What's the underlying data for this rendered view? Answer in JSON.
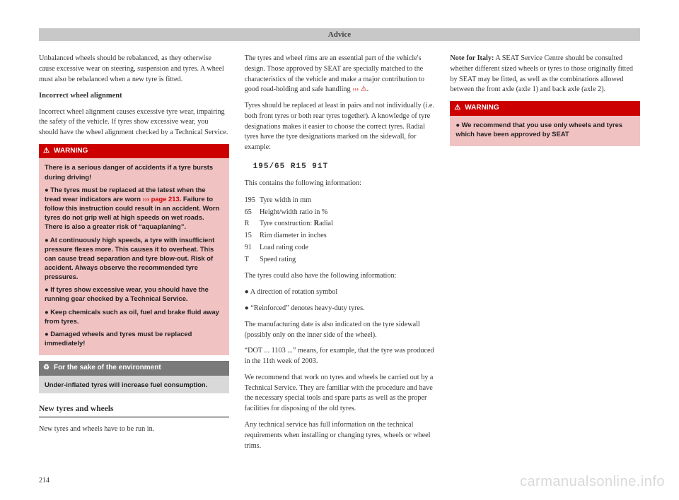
{
  "pageNumber": "214",
  "watermark": "carmanualsonline.info",
  "headerBar": "Advice",
  "col1": {
    "p1": "Unbalanced wheels should be rebalanced, as they otherwise cause excessive wear on steering, suspension and tyres. A wheel must also be rebalanced when a new tyre is fitted.",
    "h1": "Incorrect wheel alignment",
    "p2": "Incorrect wheel alignment causes excessive tyre wear, impairing the safety of the vehicle. If tyres show excessive wear, you should have the wheel alignment checked by a Technical Service."
  },
  "warning1": {
    "title": "WARNING",
    "b1": "There is a serious danger of accidents if a tyre bursts during driving!",
    "b2a": "● The tyres must be replaced at the latest when the tread wear indicators are worn ",
    "b2link": "››› page 213",
    "b2b": ". Failure to follow this instruction could result in an accident. Worn tyres do not grip well at high speeds on wet roads. There is also a greater risk of “aquaplaning”.",
    "b3": "● At continuously high speeds, a tyre with insufficient pressure flexes more. This causes it to overheat. This can cause tread separation and tyre blow-out. Risk of accident. Always observe the recommended tyre pressures.",
    "b4": "● If tyres show excessive wear, you should have the running gear checked by a Technical Service.",
    "b5": "● Keep chemicals such as oil, fuel and brake fluid away from tyres.",
    "b6": "● Damaged wheels and tyres must be replaced immediately!"
  },
  "envBox": {
    "title": "For the sake of the environment",
    "body": "Under-inflated tyres will increase fuel consumption."
  },
  "section2": {
    "title": "New tyres and wheels",
    "p1": "New tyres and wheels have to be run in.",
    "p2a": "The tyres and wheel rims are an essential part of the vehicle's design. Those approved by SEAT are specially matched to the characteristics of the vehicle and make a major contribution to good road-holding and safe handling ",
    "p2link": "›››",
    "p2b": ".",
    "p3": "Tyres should be replaced at least in pairs and not individually (i.e. both front tyres or both rear tyres together). A knowledge of tyre designations makes it easier to choose the correct tyres. Radial tyres have the tyre designations marked on the sidewall, for example:",
    "code": "195/65  R15  91T",
    "p4": "This contains the following information:",
    "defs": [
      [
        "195",
        "Tyre width in mm"
      ],
      [
        "65",
        "Height/width ratio in %"
      ],
      [
        "R",
        "Tyre construction: Radial"
      ],
      [
        "15",
        "Rim diameter in inches"
      ],
      [
        "91",
        "Load rating code"
      ],
      [
        "T",
        "Speed rating"
      ]
    ]
  },
  "col3": {
    "p1": "The tyres could also have the following information:",
    "li1": "● A direction of rotation symbol",
    "li2": "● “Reinforced” denotes heavy-duty tyres.",
    "p2": "The manufacturing date is also indicated on the tyre sidewall (possibly only on the inner side of the wheel).",
    "p3": "“DOT ... 1103 ...” means, for example, that the tyre was produced in the 11th week of 2003.",
    "p4": "We recommend that work on tyres and wheels be carried out by a Technical Service. They are familiar with the procedure and have the necessary special tools and spare parts as well as the proper facilities for disposing of the old tyres.",
    "p5": "Any technical service has full information on the technical requirements when installing or changing tyres, wheels or wheel trims.",
    "p6a": "Note for Italy:",
    "p6b": " A SEAT Service Centre should be consulted whether different sized wheels or tyres to those originally fitted by SEAT may be fitted, as well as the combinations allowed between the front axle (axle 1) and back axle (axle 2)."
  },
  "warning2": {
    "title": "WARNING",
    "b1": "● We recommend that you use only wheels and tyres which have been approved by SEAT"
  }
}
